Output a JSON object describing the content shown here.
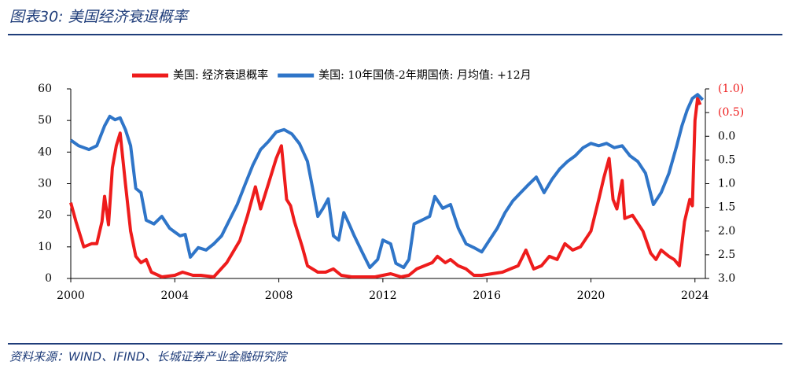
{
  "header": {
    "title": "图表30:  美国经济衰退概率"
  },
  "footer": {
    "source": "资料来源：WIND、IFIND、长城证券产业金融研究院"
  },
  "chart_data": {
    "type": "line",
    "xlim": [
      2000,
      2024.4
    ],
    "xticks": [
      2000,
      2004,
      2008,
      2012,
      2016,
      2020,
      2024
    ],
    "ylim": [
      0,
      60
    ],
    "yticks": [
      0,
      10,
      20,
      30,
      40,
      50,
      60
    ],
    "y2lim": [
      3,
      -1
    ],
    "y2ticks": [
      {
        "value": -1,
        "label": "(1.0)"
      },
      {
        "value": -0.5,
        "label": "(0.5)"
      },
      {
        "value": 0,
        "label": "0.0"
      },
      0.5,
      {
        "value": 1,
        "label": "1.0"
      },
      1.5,
      {
        "value": 2,
        "label": "2.0"
      },
      2.5,
      {
        "value": 3,
        "label": "3.0"
      }
    ],
    "legend": "top",
    "series": [
      {
        "name": "美国: 经济衰退概率",
        "color": "#ee1c1c",
        "x": [
          2000.0,
          2000.2,
          2000.5,
          2000.8,
          2001.0,
          2001.2,
          2001.3,
          2001.45,
          2001.6,
          2001.75,
          2001.9,
          2002.1,
          2002.3,
          2002.5,
          2002.7,
          2002.9,
          2003.1,
          2003.5,
          2004.0,
          2004.3,
          2004.7,
          2005.0,
          2005.5,
          2006.0,
          2006.5,
          2006.8,
          2007.1,
          2007.3,
          2007.6,
          2007.9,
          2008.1,
          2008.3,
          2008.45,
          2008.6,
          2008.9,
          2009.1,
          2009.5,
          2009.8,
          2010.1,
          2010.4,
          2010.8,
          2011.2,
          2011.7,
          2012.0,
          2012.3,
          2012.7,
          2013.0,
          2013.3,
          2013.6,
          2013.9,
          2014.1,
          2014.4,
          2014.6,
          2014.9,
          2015.2,
          2015.5,
          2015.8,
          2016.2,
          2016.6,
          2016.9,
          2017.2,
          2017.5,
          2017.8,
          2018.1,
          2018.4,
          2018.7,
          2019.0,
          2019.3,
          2019.6,
          2020.0,
          2020.3,
          2020.5,
          2020.7,
          2020.85,
          2021.0,
          2021.2,
          2021.3,
          2021.6,
          2022.0,
          2022.3,
          2022.5,
          2022.7,
          2023.0,
          2023.2,
          2023.4,
          2023.6,
          2023.8,
          2023.9,
          2024.0,
          2024.1,
          2024.2
        ],
        "values": [
          24,
          18,
          10,
          11,
          11,
          18,
          26,
          17,
          35,
          42,
          46,
          30,
          15,
          7,
          5,
          6,
          2,
          0.5,
          1,
          2,
          1,
          1,
          0.5,
          5,
          12,
          20,
          29,
          22,
          30,
          38,
          42,
          25,
          23,
          18,
          10,
          4,
          2,
          2,
          3,
          1,
          0.5,
          0.5,
          0.5,
          1,
          1.5,
          0.5,
          1,
          3,
          4,
          5,
          7,
          5,
          6,
          4,
          3,
          1,
          1,
          1.5,
          2,
          3,
          4,
          9,
          3,
          4,
          7,
          6,
          11,
          9,
          10,
          15,
          25,
          32,
          38,
          25,
          22,
          31,
          19,
          20,
          15,
          8,
          6,
          9,
          7,
          6,
          4,
          18,
          25,
          23,
          50,
          57,
          55
        ]
      },
      {
        "name": "美国: 10年国债-2年期国债: 月均值: +12月",
        "color": "#2f75c8",
        "axis": "y2",
        "x": [
          2000.0,
          2000.3,
          2000.7,
          2001.0,
          2001.3,
          2001.5,
          2001.7,
          2001.9,
          2002.1,
          2002.3,
          2002.5,
          2002.7,
          2002.9,
          2003.2,
          2003.5,
          2003.8,
          2004.0,
          2004.2,
          2004.4,
          2004.6,
          2004.9,
          2005.2,
          2005.5,
          2005.8,
          2006.1,
          2006.4,
          2006.7,
          2007.0,
          2007.3,
          2007.6,
          2007.9,
          2008.2,
          2008.5,
          2008.8,
          2009.1,
          2009.3,
          2009.5,
          2009.7,
          2009.9,
          2010.1,
          2010.3,
          2010.5,
          2010.7,
          2010.9,
          2011.2,
          2011.5,
          2011.8,
          2012.0,
          2012.3,
          2012.5,
          2012.8,
          2013.0,
          2013.2,
          2013.5,
          2013.8,
          2014.0,
          2014.3,
          2014.6,
          2014.9,
          2015.2,
          2015.5,
          2015.8,
          2016.1,
          2016.4,
          2016.7,
          2017.0,
          2017.3,
          2017.6,
          2017.9,
          2018.2,
          2018.5,
          2018.8,
          2019.1,
          2019.4,
          2019.7,
          2020.0,
          2020.3,
          2020.6,
          2020.9,
          2021.2,
          2021.5,
          2021.8,
          2022.1,
          2022.4,
          2022.7,
          2023.0,
          2023.3,
          2023.5,
          2023.7,
          2023.9,
          2024.1,
          2024.3
        ],
        "values": [
          0.08,
          0.2,
          0.28,
          0.2,
          -0.22,
          -0.42,
          -0.35,
          -0.39,
          -0.14,
          0.2,
          1.1,
          1.19,
          1.77,
          1.85,
          1.69,
          1.94,
          2.02,
          2.1,
          2.07,
          2.55,
          2.35,
          2.4,
          2.27,
          2.1,
          1.77,
          1.44,
          1.02,
          0.61,
          0.28,
          0.11,
          -0.09,
          -0.14,
          -0.05,
          0.16,
          0.53,
          1.1,
          1.69,
          1.52,
          1.32,
          2.1,
          2.19,
          1.61,
          1.85,
          2.1,
          2.44,
          2.77,
          2.6,
          2.19,
          2.27,
          2.68,
          2.77,
          2.6,
          1.85,
          1.77,
          1.69,
          1.27,
          1.52,
          1.44,
          1.94,
          2.27,
          2.35,
          2.44,
          2.19,
          1.94,
          1.61,
          1.36,
          1.19,
          1.02,
          0.86,
          1.19,
          0.91,
          0.69,
          0.53,
          0.41,
          0.24,
          0.15,
          0.2,
          0.15,
          0.24,
          0.2,
          0.41,
          0.53,
          0.78,
          1.44,
          1.19,
          0.78,
          0.2,
          -0.22,
          -0.55,
          -0.8,
          -0.88,
          -0.77
        ]
      }
    ]
  }
}
